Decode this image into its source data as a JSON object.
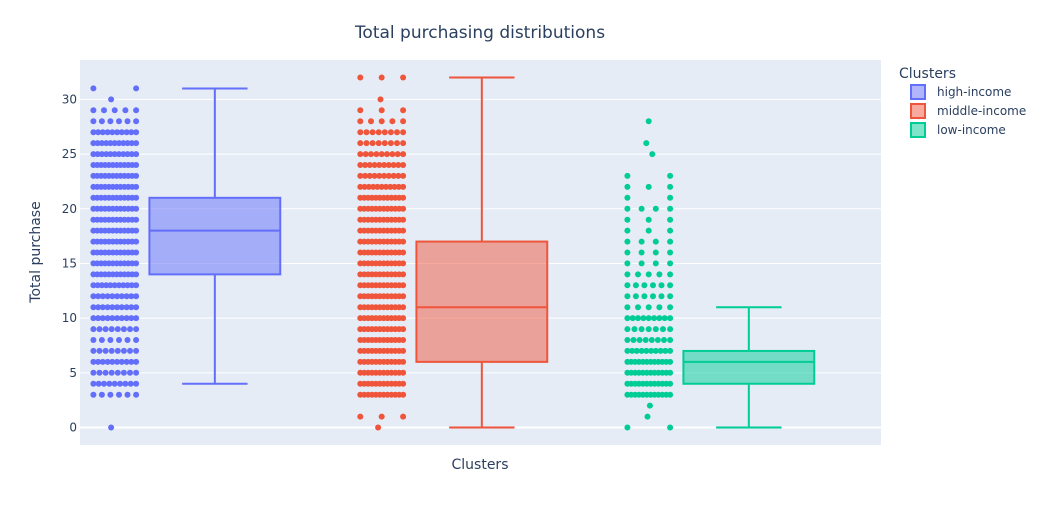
{
  "chart_data": {
    "type": "box",
    "title": "Total purchasing distributions",
    "xlabel": "Clusters",
    "ylabel": "Total purchase",
    "ylim": [
      -1.6,
      33.6
    ],
    "yticks": [
      0,
      5,
      10,
      15,
      20,
      25,
      30
    ],
    "grid": true,
    "legend_title": "Clusters",
    "legend_position": "top-right",
    "series": [
      {
        "name": "high-income",
        "color": "#636efa",
        "box": {
          "min": 4,
          "q1": 14,
          "median": 18,
          "q3": 21,
          "max": 31
        },
        "points": {
          "values": [
            0,
            3,
            4,
            5,
            6,
            7,
            8,
            9,
            10,
            11,
            12,
            13,
            14,
            15,
            16,
            17,
            18,
            19,
            20,
            21,
            22,
            23,
            24,
            25,
            26,
            27,
            28,
            29,
            30,
            31
          ],
          "counts": [
            1,
            6,
            9,
            8,
            10,
            8,
            6,
            8,
            10,
            10,
            10,
            11,
            12,
            12,
            12,
            12,
            12,
            12,
            12,
            12,
            12,
            12,
            12,
            11,
            11,
            10,
            6,
            5,
            1,
            2
          ]
        }
      },
      {
        "name": "middle-income",
        "color": "#ef553b",
        "box": {
          "min": 0,
          "q1": 6,
          "median": 11,
          "q3": 17,
          "max": 32
        },
        "points": {
          "values": [
            0,
            1,
            3,
            4,
            5,
            6,
            7,
            8,
            9,
            10,
            11,
            12,
            13,
            14,
            15,
            16,
            17,
            18,
            19,
            20,
            21,
            22,
            23,
            24,
            25,
            26,
            27,
            28,
            29,
            30,
            32
          ],
          "counts": [
            1,
            3,
            12,
            12,
            12,
            12,
            12,
            12,
            12,
            12,
            12,
            12,
            12,
            12,
            12,
            12,
            12,
            12,
            12,
            12,
            12,
            11,
            10,
            10,
            9,
            8,
            8,
            5,
            3,
            1,
            3
          ]
        }
      },
      {
        "name": "low-income",
        "color": "#00cc96",
        "box": {
          "min": 0,
          "q1": 4,
          "median": 6,
          "q3": 7,
          "max": 11
        },
        "points": {
          "values": [
            0,
            1,
            2,
            3,
            4,
            5,
            6,
            7,
            8,
            9,
            10,
            11,
            12,
            13,
            14,
            15,
            16,
            17,
            18,
            19,
            20,
            21,
            22,
            23,
            25,
            26,
            28
          ],
          "counts": [
            2,
            1,
            1,
            12,
            12,
            12,
            12,
            10,
            8,
            7,
            9,
            5,
            6,
            6,
            5,
            4,
            4,
            4,
            3,
            3,
            4,
            2,
            3,
            2,
            1,
            1,
            1
          ]
        }
      }
    ]
  }
}
